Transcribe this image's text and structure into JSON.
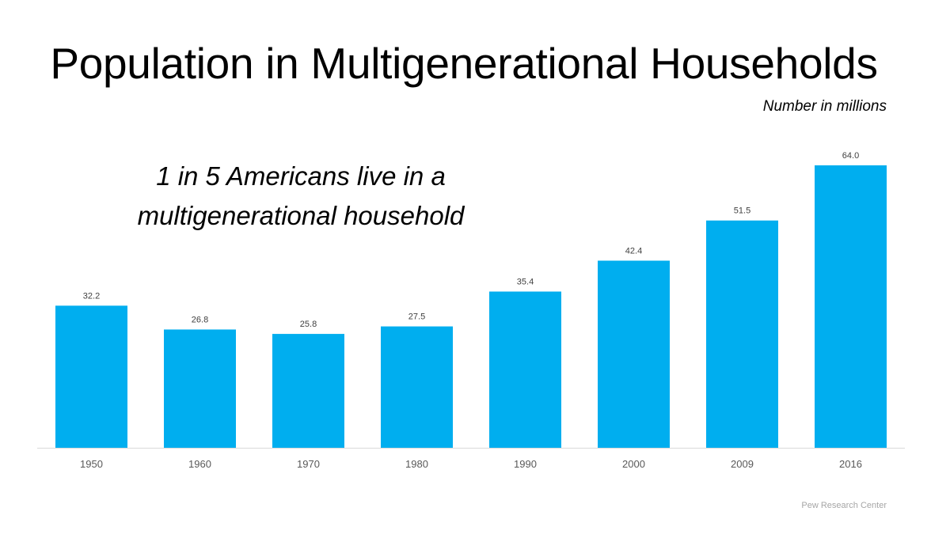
{
  "header": {
    "title": "Population in Multigenerational Households",
    "subtitle": "Number in millions"
  },
  "callout": {
    "line1": "1 in 5 Americans live in a",
    "line2": "multigenerational household"
  },
  "footer": {
    "source": "Pew Research Center"
  },
  "colors": {
    "bar": "#00AEEF",
    "axis": "#D9D9D9"
  },
  "chart_data": {
    "type": "bar",
    "title": "Population in Multigenerational Households",
    "ylabel": "Number in millions",
    "categories": [
      "1950",
      "1960",
      "1970",
      "1980",
      "1990",
      "2000",
      "2009",
      "2016"
    ],
    "values": [
      32.2,
      26.8,
      25.8,
      27.5,
      35.4,
      42.4,
      51.5,
      64.0
    ],
    "value_labels": [
      "32.2",
      "26.8",
      "25.8",
      "27.5",
      "35.4",
      "42.4",
      "51.5",
      "64.0"
    ],
    "ylim": [
      0,
      64.0
    ],
    "grid": false,
    "legend": "none"
  }
}
